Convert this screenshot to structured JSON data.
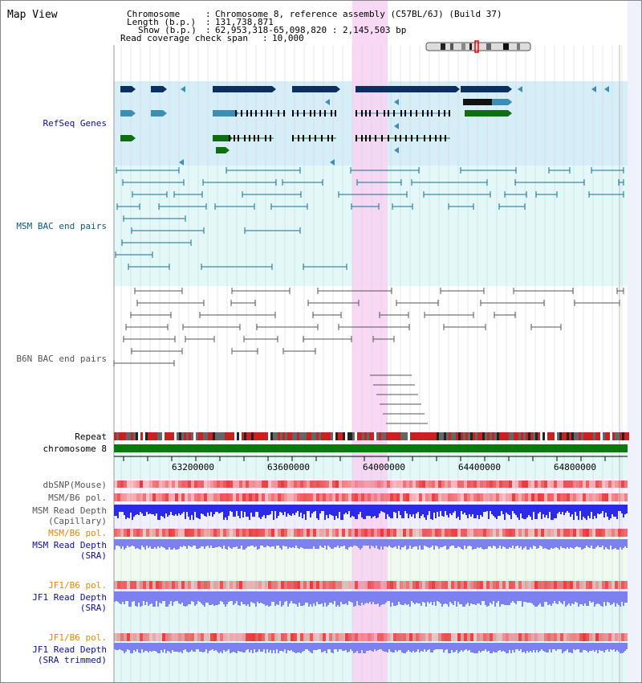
{
  "view": {
    "title": "Map View",
    "chromosome_label": "Chromosome",
    "chromosome_value": "Chromosome 8, reference assembly (C57BL/6J) (Build 37)",
    "length_label": "Length (b.p.)",
    "length_value": "131,738,871",
    "show_label": "Show (b.p.)",
    "show_value": "62,953,318-65,098,820 : 2,145,503 bp",
    "coverage_label": "Read coverage check span",
    "coverage_value": "10,000",
    "sep": ":"
  },
  "tracks": {
    "refseq": "RefSeq Genes",
    "msm_bac": "MSM BAC end pairs",
    "b6n_bac": "B6N BAC end pairs",
    "repeat": "Repeat",
    "chromosome": "chromosome 8",
    "dbsnp": "dbSNP(Mouse)",
    "msm_b6_pol": "MSM/B6 pol.",
    "msm_read_depth_cap_1": "MSM Read Depth",
    "msm_read_depth_cap_2": "(Capillary)",
    "msm_b6_pol_2": "MSM/B6 pol.",
    "msm_read_depth_sra_1": "MSM Read Depth",
    "msm_read_depth_sra_2": "(SRA)",
    "jf1_b6_pol": "JF1/B6 pol.",
    "jf1_read_depth_1": "JF1 Read Depth",
    "jf1_read_depth_2": "(SRA)",
    "jf1_b6_pol_2": "JF1/B6 pol.",
    "jf1_read_depth_trim_1": "JF1 Read Depth",
    "jf1_read_depth_trim_2": "(SRA trimmed)"
  },
  "axis": {
    "ticks": [
      "63200000",
      "63600000",
      "64000000",
      "64400000",
      "64800000"
    ]
  },
  "colors": {
    "highlight": "#f7d4f3",
    "refseq_bg": "#d6eef8",
    "refseq_dark": "#0b2f60",
    "refseq_mid": "#3d8eb5",
    "refseq_green": "#0f6e12",
    "msm_bac": "#1a6e8e",
    "b6n_bac": "#555555",
    "chromosome_bar": "#0a7a0a",
    "depth_blue": "#2a2ae8",
    "depth_light": "#7d80ef",
    "pol_red": "#e83a3a"
  }
}
